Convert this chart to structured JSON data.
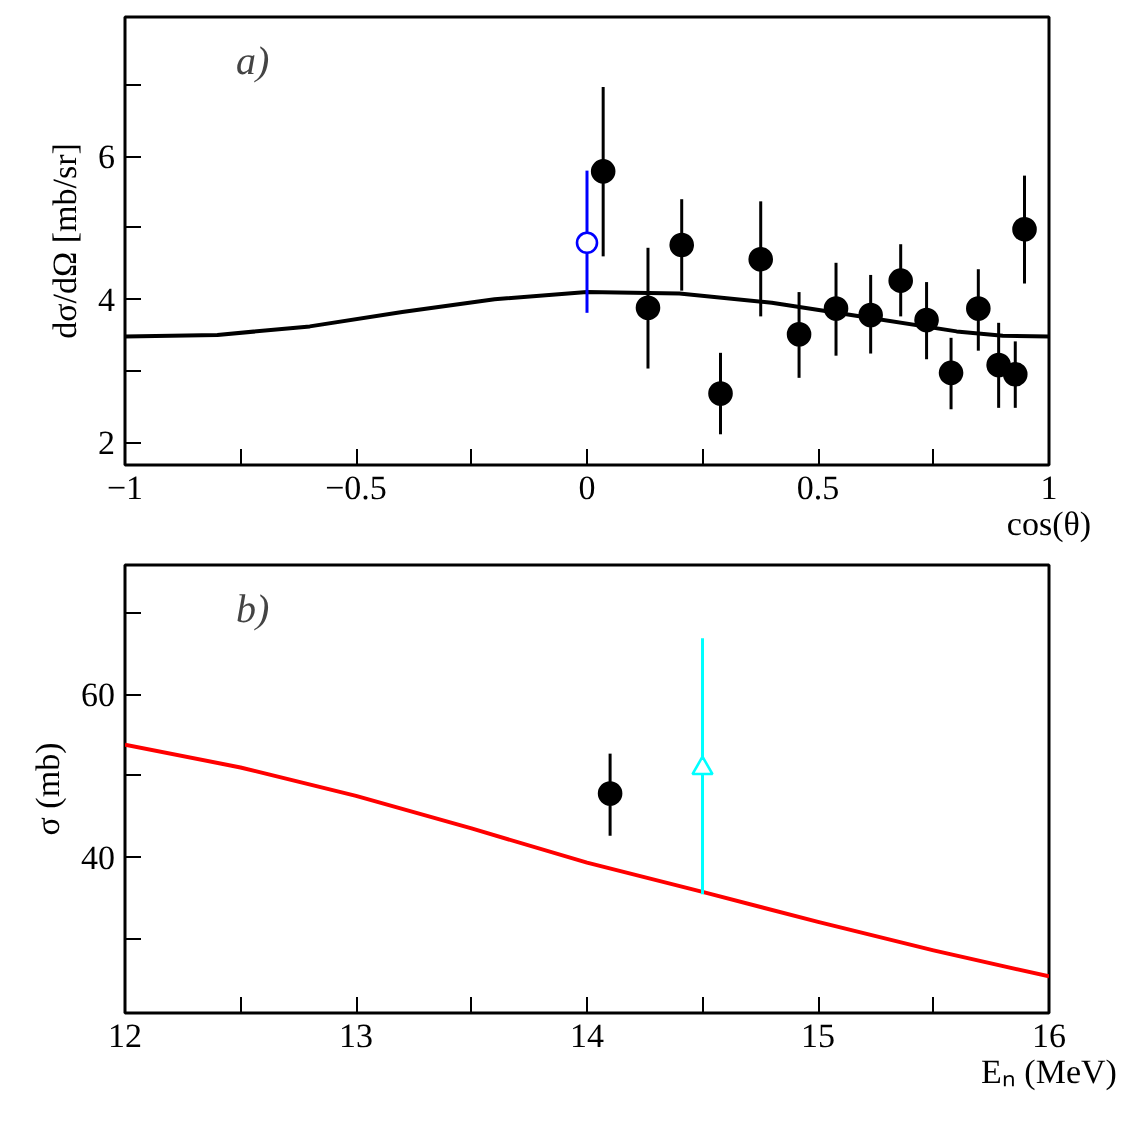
{
  "chart_data": [
    {
      "type": "scatter",
      "annotations": [
        "a)"
      ],
      "xlabel": "cos(θ)",
      "ylabel": "dσ/dΩ [mb/sr]",
      "xlim": [
        -1,
        1
      ],
      "ylim": [
        1.68,
        7.95
      ],
      "xticks": [
        -1,
        {
          "value": -0.75,
          "label": null
        },
        -0.5,
        {
          "value": -0.25,
          "label": null
        },
        0,
        {
          "value": 0.25,
          "label": null
        },
        0.5,
        {
          "value": 0.75,
          "label": null
        },
        1
      ],
      "yticks": [
        2,
        {
          "value": 3,
          "label": null
        },
        4,
        {
          "value": 5,
          "label": null
        },
        6,
        {
          "value": 7,
          "label": null
        }
      ],
      "series": [
        {
          "marker": "circle",
          "color": "#000000",
          "x": [
            0.035,
            0.132,
            0.205,
            0.289,
            0.376,
            0.459,
            0.539,
            0.614,
            0.679,
            0.735,
            0.788,
            0.847,
            0.891,
            0.927,
            0.947
          ],
          "values": [
            5.79,
            3.88,
            4.76,
            2.68,
            4.56,
            3.51,
            3.87,
            3.78,
            4.26,
            3.71,
            2.97,
            3.87,
            3.08,
            2.95,
            4.98
          ],
          "errors": [
            [
              4.6,
              6.97
            ],
            [
              3.03,
              4.72
            ],
            [
              4.12,
              5.4
            ],
            [
              2.11,
              3.25
            ],
            [
              3.76,
              5.37
            ],
            [
              2.9,
              4.1
            ],
            [
              3.21,
              4.51
            ],
            [
              3.24,
              4.34
            ],
            [
              3.76,
              4.77
            ],
            [
              3.16,
              4.24
            ],
            [
              2.46,
              3.46
            ],
            [
              3.28,
              4.42
            ],
            [
              2.48,
              3.67
            ],
            [
              2.48,
              3.41
            ],
            [
              4.22,
              5.73
            ]
          ]
        },
        {
          "type": "line",
          "color": "#000000",
          "line_style": "solid",
          "x": [
            -1,
            -0.8,
            -0.6,
            -0.4,
            -0.2,
            0,
            0.2,
            0.4,
            0.6,
            0.8,
            0.9,
            1
          ],
          "values": [
            3.48,
            3.5,
            3.62,
            3.82,
            4.0,
            4.1,
            4.08,
            3.95,
            3.75,
            3.55,
            3.49,
            3.48
          ]
        },
        {
          "marker": "circle",
          "color": "#0000ff",
          "x": [
            0
          ],
          "values": [
            4.79
          ],
          "errors": [
            [
              3.81,
              5.8
            ]
          ]
        }
      ]
    },
    {
      "type": "scatter",
      "annotations": [
        "b)"
      ],
      "xlabel": "Eₙ (MeV)",
      "ylabel": "σ (mb)",
      "xlim": [
        12,
        16
      ],
      "ylim": [
        20.8,
        75.9
      ],
      "xticks": [
        12,
        {
          "value": 12.5,
          "label": null
        },
        13,
        {
          "value": 13.5,
          "label": null
        },
        14,
        {
          "value": 14.5,
          "label": null
        },
        15,
        {
          "value": 15.5,
          "label": null
        },
        16
      ],
      "yticks": [
        {
          "value": 30,
          "label": null
        },
        40,
        {
          "value": 50,
          "label": null
        },
        60,
        {
          "value": 70,
          "label": null
        }
      ],
      "series": [
        {
          "type": "line",
          "color": "#ff0000",
          "line_style": "solid",
          "x": [
            12,
            12.5,
            13,
            13.5,
            14,
            14.5,
            15,
            15.5,
            16
          ],
          "values": [
            53.8,
            51.0,
            47.5,
            43.5,
            39.3,
            35.7,
            32.0,
            28.5,
            25.3
          ]
        },
        {
          "marker": "circle",
          "color": "#000000",
          "x": [
            14.1
          ],
          "values": [
            47.8
          ],
          "errors": [
            [
              42.6,
              52.7
            ]
          ]
        },
        {
          "marker": "triangle",
          "color": "#00ffff",
          "x": [
            14.5
          ],
          "values": [
            50.9
          ],
          "errors": [
            [
              35.4,
              66.9
            ]
          ]
        }
      ]
    }
  ]
}
